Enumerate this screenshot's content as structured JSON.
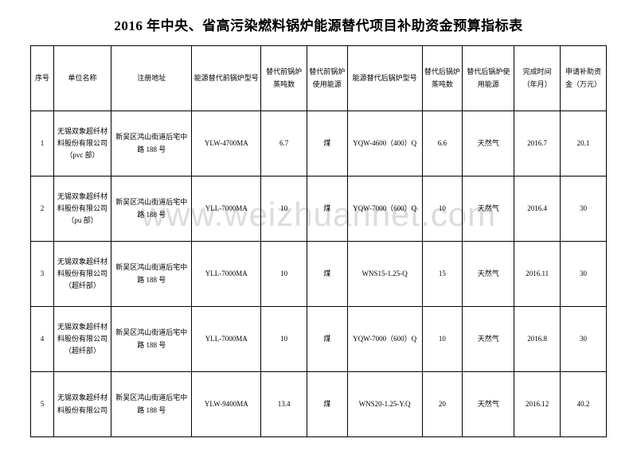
{
  "title": "2016 年中央、省高污染燃料锅炉能源替代项目补助资金预算指标表",
  "watermark": "www.weizhuannet.com",
  "columns": [
    "序号",
    "单位名称",
    "注册地址",
    "能源替代前锅炉型号",
    "替代前锅炉蒸吨数",
    "替代前锅炉使用能源",
    "能源替代后锅炉型号",
    "替代后锅炉蒸吨数",
    "替代后锅炉使用能源",
    "完成时间（年月）",
    "申请补助资金（万元）"
  ],
  "col_widths": [
    "4%",
    "10%",
    "14%",
    "12%",
    "8%",
    "7%",
    "13%",
    "7%",
    "9%",
    "8%",
    "8%"
  ],
  "rows": [
    {
      "c0": "1",
      "c1": "无锡双象超纤材料股份有限公司（pvc 部）",
      "c2": "新吴区鸿山街道后宅中路 188 号",
      "c3": "YLW-4700MA",
      "c4": "6.7",
      "c5": "煤",
      "c6": "YQW-4600（400）Q",
      "c7": "6.6",
      "c8": "天然气",
      "c9": "2016.7",
      "c10": "20.1"
    },
    {
      "c0": "2",
      "c1": "无锡双象超纤材料股份有限公司（pu 部）",
      "c2": "新吴区鸿山街道后宅中路 188 号",
      "c3": "YLL-7000MA",
      "c4": "10",
      "c5": "煤",
      "c6": "YQW-7000（600）Q",
      "c7": "10",
      "c8": "天然气",
      "c9": "2016.4",
      "c10": "30"
    },
    {
      "c0": "3",
      "c1": "无锡双象超纤材料股份有限公司（超纤部）",
      "c2": "新吴区鸿山街道后宅中路 188 号",
      "c3": "YLL-7000MA",
      "c4": "10",
      "c5": "煤",
      "c6": "WNS15-1.25-Q",
      "c7": "15",
      "c8": "天然气",
      "c9": "2016.11",
      "c10": "30"
    },
    {
      "c0": "4",
      "c1": "无锡双象超纤材料股份有限公司（超纤部）",
      "c2": "新吴区鸿山街道后宅中路 188 号",
      "c3": "YLL-7000MA",
      "c4": "10",
      "c5": "煤",
      "c6": "YQW-7000（600）Q",
      "c7": "10",
      "c8": "天然气",
      "c9": "2016.8",
      "c10": "30"
    },
    {
      "c0": "5",
      "c1": "无锡双象超纤材料股份有限公司",
      "c2": "新吴区鸿山街道后宅中路 188 号",
      "c3": "YLW-9400MA",
      "c4": "13.4",
      "c5": "煤",
      "c6": "WNS20-1.25-Y.Q",
      "c7": "20",
      "c8": "天然气",
      "c9": "2016.12",
      "c10": "40.2"
    }
  ]
}
